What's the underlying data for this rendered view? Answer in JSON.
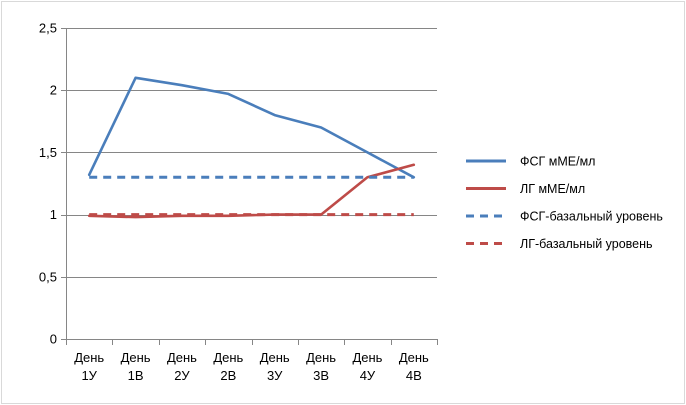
{
  "chart_data": {
    "type": "line",
    "title": "",
    "xlabel": "",
    "ylabel": "",
    "categories": [
      [
        "День",
        "1У"
      ],
      [
        "День",
        "1В"
      ],
      [
        "День",
        "2У"
      ],
      [
        "День",
        "2В"
      ],
      [
        "День",
        "3У"
      ],
      [
        "День",
        "3В"
      ],
      [
        "День",
        "4У"
      ],
      [
        "День",
        "4В"
      ]
    ],
    "y_ticks": [
      "0",
      "0,5",
      "1",
      "1,5",
      "2",
      "2,5"
    ],
    "ylim": [
      0,
      2.5
    ],
    "grid": "horizontal",
    "legend_position": "right",
    "series": [
      {
        "name": "ФСГ мМЕ/мл",
        "values": [
          1.32,
          2.1,
          2.04,
          1.97,
          1.8,
          1.7,
          1.5,
          1.3
        ],
        "color": "#4a7ebb",
        "dash": "solid"
      },
      {
        "name": "ЛГ мМЕ/мл",
        "values": [
          0.99,
          0.98,
          0.99,
          0.99,
          1.0,
          1.0,
          1.3,
          1.4
        ],
        "color": "#be4b48",
        "dash": "solid"
      },
      {
        "name": "ФСГ-базальный уровень",
        "values": [
          1.3,
          1.3,
          1.3,
          1.3,
          1.3,
          1.3,
          1.3,
          1.3
        ],
        "color": "#4a7ebb",
        "dash": "dashed"
      },
      {
        "name": "ЛГ-базальный уровень",
        "values": [
          1.0,
          1.0,
          1.0,
          1.0,
          1.0,
          1.0,
          1.0,
          1.0
        ],
        "color": "#be4b48",
        "dash": "dashed"
      }
    ]
  }
}
